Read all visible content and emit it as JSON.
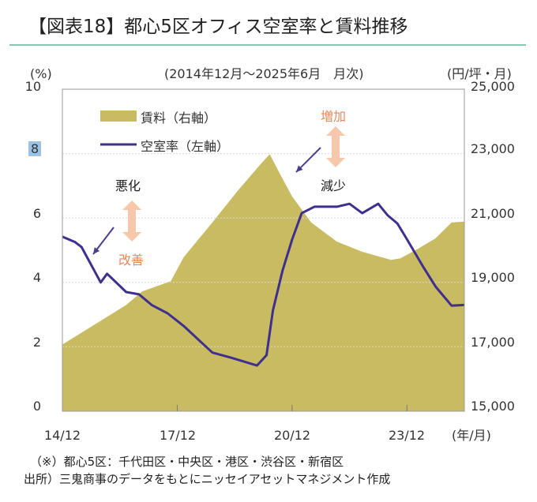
{
  "title": "【図表18】都心5区オフィス空室率と賃料推移",
  "chart_data": {
    "type": "line+area",
    "subtitle": "(2014年12月～2025年6月　月次)",
    "ylabel_left": "(%)",
    "ylabel_right": "(円/坪・月)",
    "xlabel": "(年/月)",
    "ylim_left": [
      0,
      10
    ],
    "ylim_right": [
      15000,
      25000
    ],
    "xlim": [
      "2014-12",
      "2025-06"
    ],
    "left_ticks": [
      "0",
      "2",
      "4",
      "6",
      "8",
      "10"
    ],
    "right_ticks": [
      "15,000",
      "17,000",
      "19,000",
      "21,000",
      "23,000",
      "25,000"
    ],
    "x_ticks": [
      "14/12",
      "17/12",
      "20/12",
      "23/12"
    ],
    "grid": "horizontal dotted",
    "legend_placement": "top-left",
    "colors": {
      "rent": "#c8bb62",
      "vacancy": "#3f2f8e",
      "grid": "#ffffff",
      "improve_arrow": "#f6c7ab",
      "annotation_orange": "#e8875a"
    },
    "series": [
      {
        "name": "賃料（右軸）",
        "axis": "right",
        "kind": "area",
        "points": [
          [
            "2014-12",
            17070
          ],
          [
            "2016-08",
            18300
          ],
          [
            "2017-01",
            18720
          ],
          [
            "2017-10",
            19040
          ],
          [
            "2018-02",
            19780
          ],
          [
            "2018-11",
            20860
          ],
          [
            "2019-07",
            21850
          ],
          [
            "2020-02",
            22660
          ],
          [
            "2020-05",
            22980
          ],
          [
            "2020-08",
            22410
          ],
          [
            "2020-12",
            21670
          ],
          [
            "2021-06",
            20860
          ],
          [
            "2022-02",
            20270
          ],
          [
            "2022-10",
            19950
          ],
          [
            "2023-07",
            19700
          ],
          [
            "2023-10",
            19750
          ],
          [
            "2024-03",
            20020
          ],
          [
            "2024-09",
            20370
          ],
          [
            "2025-02",
            20860
          ],
          [
            "2025-06",
            20890
          ]
        ]
      },
      {
        "name": "空室率（左軸）",
        "axis": "left",
        "kind": "line",
        "points": [
          [
            "2014-12",
            5.42
          ],
          [
            "2015-04",
            5.25
          ],
          [
            "2015-06",
            5.1
          ],
          [
            "2015-12",
            4.0
          ],
          [
            "2016-02",
            4.27
          ],
          [
            "2016-08",
            3.7
          ],
          [
            "2016-12",
            3.63
          ],
          [
            "2017-04",
            3.3
          ],
          [
            "2017-09",
            3.04
          ],
          [
            "2018-02",
            2.65
          ],
          [
            "2018-11",
            1.82
          ],
          [
            "2019-05",
            1.66
          ],
          [
            "2020-01",
            1.42
          ],
          [
            "2020-04",
            1.74
          ],
          [
            "2020-06",
            3.13
          ],
          [
            "2020-09",
            4.36
          ],
          [
            "2020-12",
            5.33
          ],
          [
            "2021-03",
            6.15
          ],
          [
            "2021-07",
            6.35
          ],
          [
            "2022-02",
            6.35
          ],
          [
            "2022-06",
            6.44
          ],
          [
            "2022-10",
            6.15
          ],
          [
            "2023-03",
            6.44
          ],
          [
            "2023-06",
            6.08
          ],
          [
            "2023-09",
            5.83
          ],
          [
            "2023-12",
            5.34
          ],
          [
            "2024-05",
            4.5
          ],
          [
            "2024-09",
            3.87
          ],
          [
            "2025-02",
            3.28
          ],
          [
            "2025-06",
            3.3
          ]
        ]
      }
    ],
    "annotations": {
      "worse": "悪化",
      "improve": "改善",
      "increase": "増加",
      "decrease": "減少"
    }
  },
  "notes": [
    "（※）都心5区：千代田区・中央区・港区・渋谷区・新宿区",
    "出所）三鬼商事のデータをもとにニッセイアセットマネジメント作成"
  ]
}
